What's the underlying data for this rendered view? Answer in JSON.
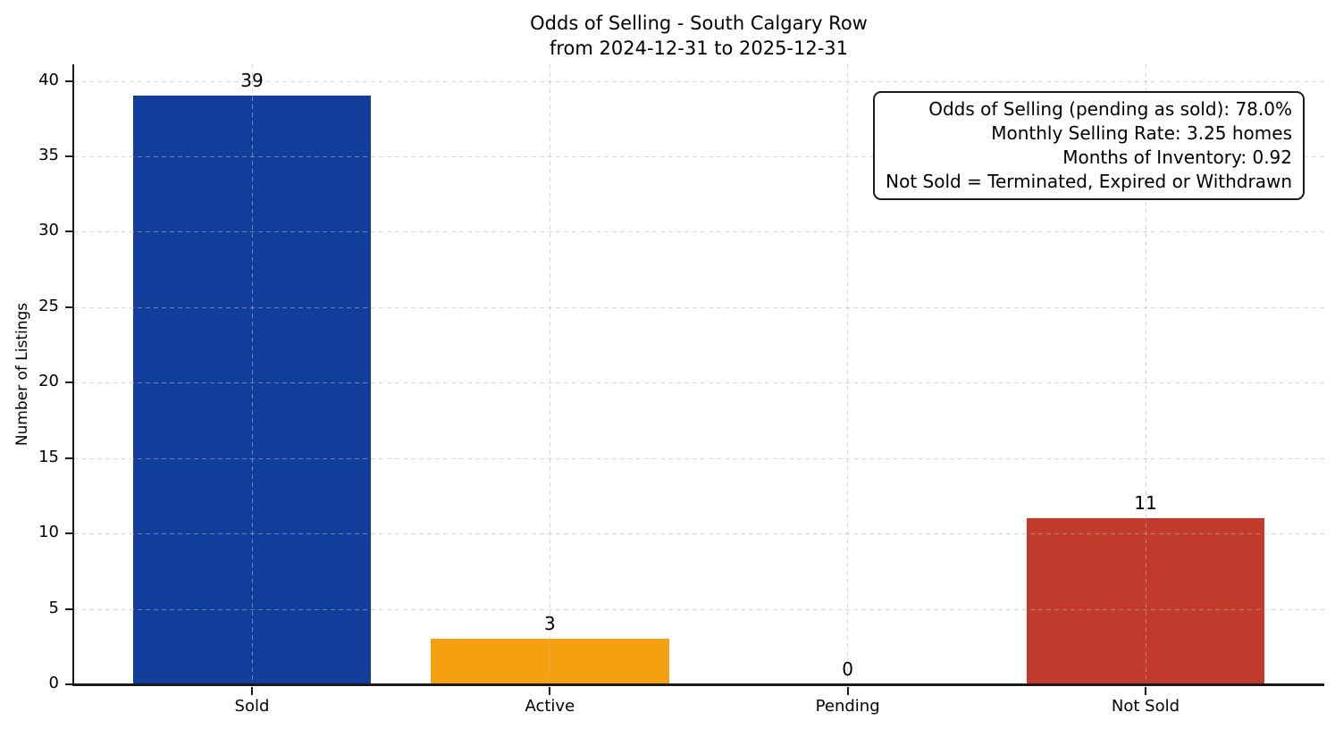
{
  "title": {
    "line1": "Odds of Selling - South Calgary Row",
    "line2": "from 2024-12-31 to 2025-12-31"
  },
  "chart_data": {
    "type": "bar",
    "title": "Odds of Selling - South Calgary Row\nfrom 2024-12-31 to 2025-12-31",
    "categories": [
      "Sold",
      "Active",
      "Pending",
      "Not Sold"
    ],
    "values": [
      39,
      3,
      0,
      11
    ],
    "value_labels": [
      "39",
      "3",
      "0",
      "11"
    ],
    "bar_colors": [
      "#123f9b",
      "#f4a011",
      null,
      "#c13a2c"
    ],
    "xlabel": "",
    "ylabel": "Number of Listings",
    "yticks": [
      0,
      5,
      10,
      15,
      20,
      25,
      30,
      35,
      40
    ],
    "ylim": [
      0,
      41.1
    ],
    "grid": true,
    "grid_style": "dashed",
    "legend_position": "none",
    "annotation": {
      "lines": [
        "Odds of Selling (pending as sold): 78.0%",
        "Monthly Selling Rate: 3.25 homes",
        "Months of Inventory: 0.92",
        "Not Sold = Terminated, Expired or Withdrawn"
      ]
    },
    "colors": {
      "sold_bar": "#123f9b",
      "active_bar": "#f4a011",
      "not_sold_bar": "#c13a2c",
      "axis": "#1a1a1a",
      "grid": "#b9b9b9",
      "background": "#ffffff"
    }
  }
}
